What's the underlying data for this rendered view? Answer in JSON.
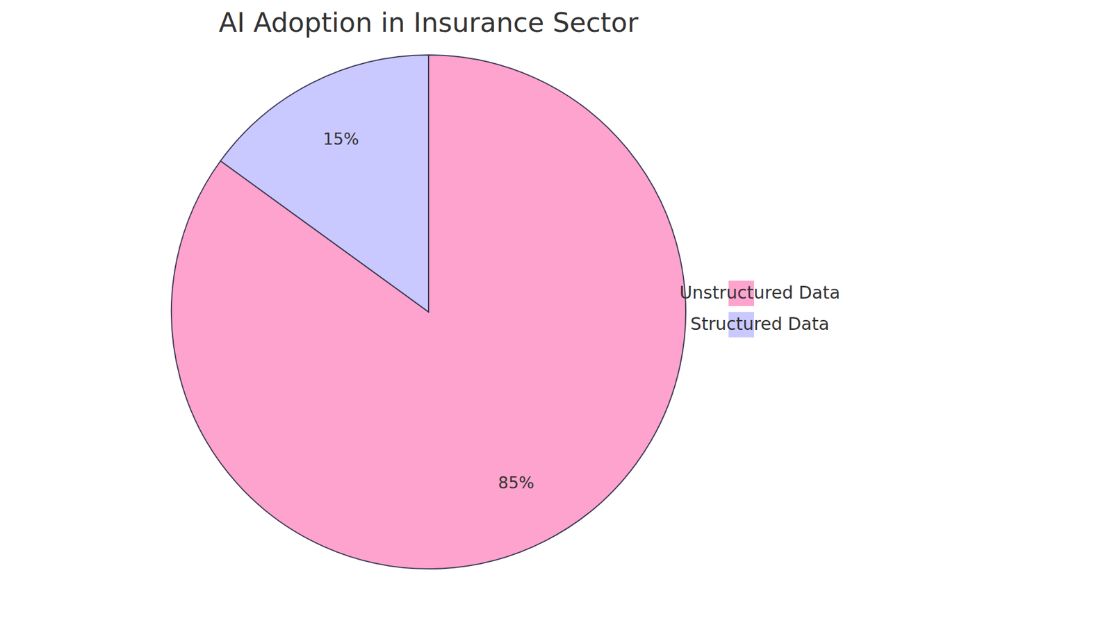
{
  "chart_data": {
    "type": "pie",
    "title": "AI Adoption in Insurance Sector",
    "categories": [
      "Unstructured Data",
      "Structured Data"
    ],
    "values": [
      85,
      15
    ],
    "value_labels": [
      "85%",
      "15%"
    ],
    "colors": [
      "#fda3cd",
      "#c9c9ff"
    ],
    "data_labels": true,
    "legend": "right"
  }
}
